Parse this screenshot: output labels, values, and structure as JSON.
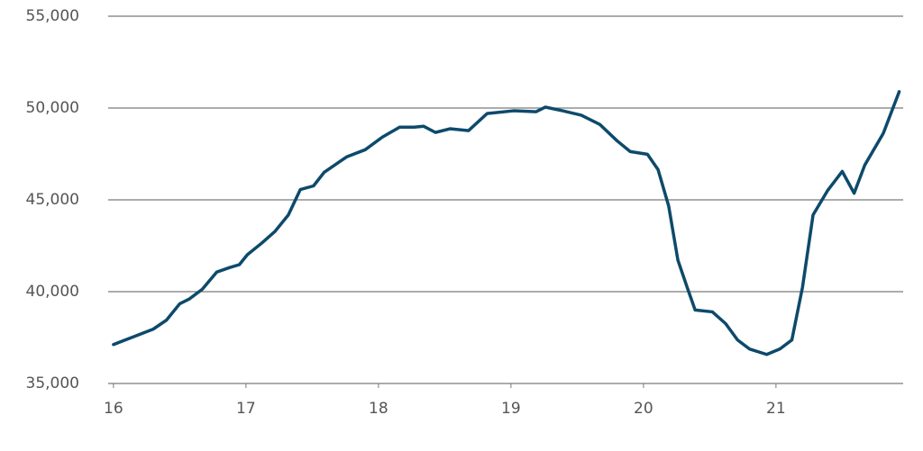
{
  "chart_data": {
    "type": "line",
    "x": [
      16.0,
      16.16,
      16.3,
      16.4,
      16.5,
      16.57,
      16.67,
      16.78,
      16.88,
      16.95,
      17.01,
      17.12,
      17.22,
      17.32,
      17.41,
      17.51,
      17.59,
      17.76,
      17.9,
      18.03,
      18.16,
      18.27,
      18.34,
      18.43,
      18.54,
      18.68,
      18.82,
      19.02,
      19.19,
      19.26,
      19.39,
      19.53,
      19.67,
      19.8,
      19.9,
      20.03,
      20.11,
      20.19,
      20.26,
      20.33,
      20.39,
      20.52,
      20.62,
      20.71,
      20.8,
      20.93,
      21.03,
      21.12,
      21.2,
      21.28,
      21.39,
      21.5,
      21.59,
      21.67,
      21.81,
      21.93
    ],
    "series": [
      {
        "color": "#0d4a6b",
        "values": [
          37120,
          37570,
          37960,
          38450,
          39340,
          39590,
          40130,
          41070,
          41320,
          41470,
          42010,
          42650,
          43290,
          44180,
          45560,
          45760,
          46500,
          47340,
          47730,
          48420,
          48960,
          48960,
          49010,
          48670,
          48870,
          48770,
          49700,
          49850,
          49800,
          50050,
          49850,
          49610,
          49110,
          48220,
          47630,
          47480,
          46650,
          44670,
          41710,
          40230,
          39000,
          38900,
          38260,
          37370,
          36880,
          36580,
          36880,
          37370,
          40230,
          44180,
          45510,
          46550,
          45360,
          46890,
          48620,
          50890
        ]
      }
    ],
    "xlim": [
      15.96,
      21.96
    ],
    "xticks": [
      16,
      17,
      18,
      19,
      20,
      21
    ],
    "ylim": [
      35000,
      55000
    ],
    "yticks": [
      {
        "value": 35000,
        "label": "35,000"
      },
      {
        "value": 40000,
        "label": "40,000"
      },
      {
        "value": 45000,
        "label": "45,000"
      },
      {
        "value": 50000,
        "label": "50,000"
      },
      {
        "value": 55000,
        "label": "55,000"
      }
    ],
    "grid": true
  }
}
